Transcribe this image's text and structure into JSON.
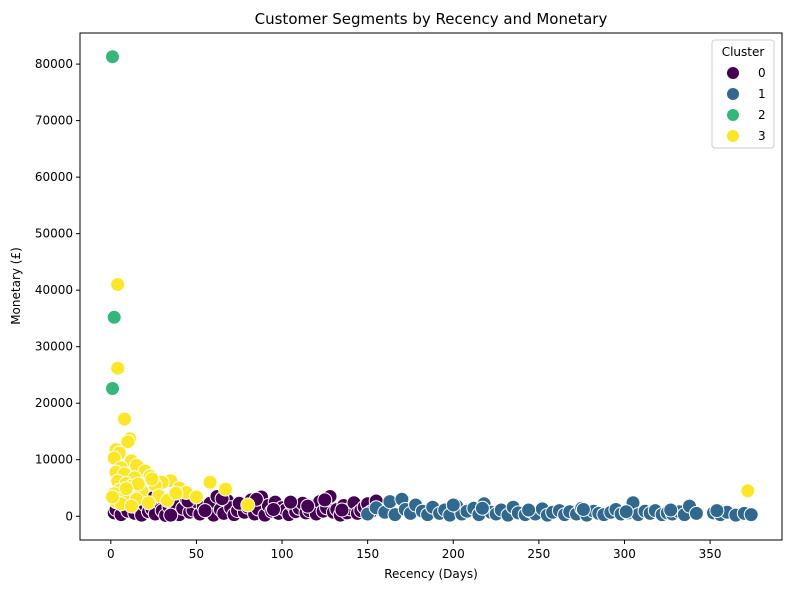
{
  "chart_data": {
    "type": "scatter",
    "title": "Customer Segments by Recency and Monetary",
    "xlabel": "Recency (Days)",
    "ylabel": "Monetary (£)",
    "xlim": [
      -18,
      392
    ],
    "ylim": [
      -4200,
      85500
    ],
    "xticks": [
      0,
      50,
      100,
      150,
      200,
      250,
      300,
      350
    ],
    "yticks": [
      0,
      10000,
      20000,
      30000,
      40000,
      50000,
      60000,
      70000,
      80000
    ],
    "grid": false,
    "legend": {
      "title": "Cluster",
      "placement": "top-right"
    },
    "colors": {
      "0": "#440154",
      "1": "#31688e",
      "2": "#35b779",
      "3": "#fde725"
    },
    "series": [
      {
        "name": "0",
        "points": [
          [
            2,
            600
          ],
          [
            3,
            1200
          ],
          [
            5,
            2600
          ],
          [
            6,
            300
          ],
          [
            8,
            1800
          ],
          [
            10,
            900
          ],
          [
            12,
            2400
          ],
          [
            14,
            500
          ],
          [
            16,
            1500
          ],
          [
            18,
            200
          ],
          [
            20,
            2000
          ],
          [
            22,
            800
          ],
          [
            24,
            1300
          ],
          [
            26,
            400
          ],
          [
            28,
            2500
          ],
          [
            30,
            1000
          ],
          [
            32,
            150
          ],
          [
            34,
            1700
          ],
          [
            36,
            600
          ],
          [
            38,
            2200
          ],
          [
            40,
            300
          ],
          [
            42,
            1400
          ],
          [
            44,
            3000
          ],
          [
            46,
            700
          ],
          [
            48,
            1100
          ],
          [
            50,
            2600
          ],
          [
            52,
            400
          ],
          [
            54,
            1800
          ],
          [
            56,
            900
          ],
          [
            58,
            2300
          ],
          [
            60,
            200
          ],
          [
            62,
            3500
          ],
          [
            64,
            1200
          ],
          [
            66,
            500
          ],
          [
            68,
            2800
          ],
          [
            70,
            1500
          ],
          [
            72,
            300
          ],
          [
            74,
            1000
          ],
          [
            76,
            2100
          ],
          [
            78,
            700
          ],
          [
            80,
            1600
          ],
          [
            82,
            2900
          ],
          [
            84,
            400
          ],
          [
            86,
            1300
          ],
          [
            88,
            3400
          ],
          [
            90,
            200
          ],
          [
            92,
            1900
          ],
          [
            94,
            900
          ],
          [
            96,
            2500
          ],
          [
            98,
            500
          ],
          [
            100,
            1500
          ],
          [
            102,
            1100
          ],
          [
            104,
            300
          ],
          [
            106,
            2000
          ],
          [
            108,
            800
          ],
          [
            110,
            1400
          ],
          [
            112,
            2300
          ],
          [
            114,
            600
          ],
          [
            116,
            1000
          ],
          [
            118,
            1800
          ],
          [
            120,
            400
          ],
          [
            122,
            2600
          ],
          [
            124,
            900
          ],
          [
            126,
            1500
          ],
          [
            128,
            3500
          ],
          [
            130,
            700
          ],
          [
            132,
            1200
          ],
          [
            134,
            200
          ],
          [
            136,
            1900
          ],
          [
            138,
            600
          ],
          [
            140,
            1300
          ],
          [
            142,
            2400
          ],
          [
            144,
            500
          ],
          [
            146,
            1000
          ],
          [
            148,
            1600
          ],
          [
            150,
            2200
          ],
          [
            152,
            800
          ],
          [
            155,
            2700
          ],
          [
            158,
            1100
          ],
          [
            10,
            3200
          ],
          [
            25,
            3300
          ],
          [
            35,
            200
          ],
          [
            45,
            2700
          ],
          [
            55,
            1000
          ],
          [
            65,
            3100
          ],
          [
            75,
            2300
          ],
          [
            85,
            3000
          ],
          [
            95,
            1200
          ],
          [
            105,
            2500
          ],
          [
            115,
            1800
          ],
          [
            125,
            2900
          ],
          [
            135,
            1100
          ]
        ]
      },
      {
        "name": "1",
        "points": [
          [
            150,
            400
          ],
          [
            155,
            1500
          ],
          [
            160,
            700
          ],
          [
            163,
            2600
          ],
          [
            166,
            300
          ],
          [
            170,
            3000
          ],
          [
            172,
            1200
          ],
          [
            175,
            500
          ],
          [
            178,
            2000
          ],
          [
            182,
            900
          ],
          [
            185,
            300
          ],
          [
            188,
            1600
          ],
          [
            192,
            500
          ],
          [
            195,
            1100
          ],
          [
            198,
            200
          ],
          [
            202,
            1800
          ],
          [
            205,
            400
          ],
          [
            208,
            900
          ],
          [
            212,
            1400
          ],
          [
            215,
            300
          ],
          [
            218,
            2200
          ],
          [
            222,
            700
          ],
          [
            225,
            400
          ],
          [
            228,
            1100
          ],
          [
            232,
            200
          ],
          [
            235,
            1600
          ],
          [
            238,
            600
          ],
          [
            242,
            300
          ],
          [
            245,
            900
          ],
          [
            248,
            400
          ],
          [
            252,
            1300
          ],
          [
            255,
            200
          ],
          [
            258,
            700
          ],
          [
            262,
            1000
          ],
          [
            265,
            300
          ],
          [
            268,
            800
          ],
          [
            272,
            400
          ],
          [
            275,
            1400
          ],
          [
            278,
            200
          ],
          [
            282,
            900
          ],
          [
            285,
            500
          ],
          [
            288,
            300
          ],
          [
            292,
            700
          ],
          [
            295,
            1200
          ],
          [
            298,
            400
          ],
          [
            302,
            600
          ],
          [
            305,
            2400
          ],
          [
            308,
            300
          ],
          [
            312,
            900
          ],
          [
            315,
            500
          ],
          [
            318,
            1000
          ],
          [
            322,
            300
          ],
          [
            325,
            600
          ],
          [
            328,
            400
          ],
          [
            332,
            800
          ],
          [
            335,
            300
          ],
          [
            338,
            1800
          ],
          [
            342,
            500
          ],
          [
            352,
            600
          ],
          [
            356,
            300
          ],
          [
            360,
            700
          ],
          [
            365,
            200
          ],
          [
            370,
            500
          ],
          [
            374,
            300
          ],
          [
            200,
            2000
          ],
          [
            217,
            1400
          ],
          [
            244,
            1100
          ],
          [
            276,
            1200
          ],
          [
            301,
            800
          ],
          [
            327,
            1100
          ],
          [
            354,
            1000
          ]
        ]
      },
      {
        "name": "2",
        "points": [
          [
            1,
            81300
          ],
          [
            2,
            35200
          ],
          [
            1,
            22600
          ]
        ]
      },
      {
        "name": "3",
        "points": [
          [
            4,
            41000
          ],
          [
            4,
            26200
          ],
          [
            8,
            17200
          ],
          [
            11,
            13700
          ],
          [
            10,
            13200
          ],
          [
            3,
            11800
          ],
          [
            5,
            11200
          ],
          [
            2,
            10300
          ],
          [
            12,
            9800
          ],
          [
            15,
            9000
          ],
          [
            6,
            8600
          ],
          [
            20,
            8000
          ],
          [
            3,
            7800
          ],
          [
            8,
            7500
          ],
          [
            23,
            7100
          ],
          [
            14,
            6800
          ],
          [
            35,
            6300
          ],
          [
            4,
            6200
          ],
          [
            30,
            6000
          ],
          [
            58,
            6000
          ],
          [
            9,
            5800
          ],
          [
            26,
            5500
          ],
          [
            12,
            5300
          ],
          [
            40,
            5000
          ],
          [
            67,
            4800
          ],
          [
            5,
            4600
          ],
          [
            18,
            4400
          ],
          [
            44,
            4200
          ],
          [
            2,
            4000
          ],
          [
            10,
            3800
          ],
          [
            28,
            3600
          ],
          [
            50,
            3400
          ],
          [
            7,
            3200
          ],
          [
            15,
            3000
          ],
          [
            33,
            2800
          ],
          [
            3,
            2600
          ],
          [
            22,
            2400
          ],
          [
            6,
            2200
          ],
          [
            80,
            2000
          ],
          [
            12,
            1800
          ],
          [
            372,
            4500
          ],
          [
            1,
            3400
          ],
          [
            16,
            5700
          ],
          [
            38,
            4100
          ],
          [
            24,
            6600
          ],
          [
            9,
            4900
          ]
        ]
      }
    ]
  }
}
